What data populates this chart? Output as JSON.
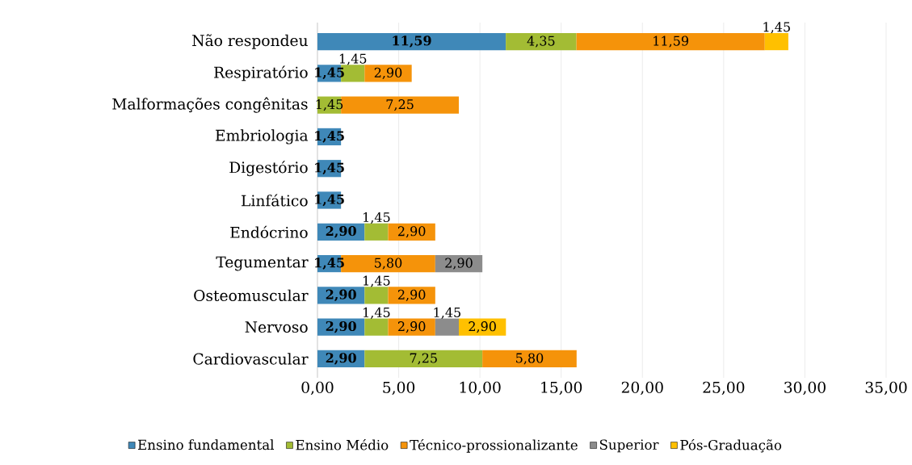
{
  "chart_data": {
    "type": "bar",
    "orientation": "horizontal",
    "stacked": true,
    "categories": [
      "Não respondeu",
      "Respiratório",
      "Malformações congênitas",
      "Embriologia",
      "Digestório",
      "Linfático",
      "Endócrino",
      "Tegumentar",
      "Osteomuscular",
      "Nervoso",
      "Cardiovascular"
    ],
    "series": [
      {
        "name": "Ensino fundamental",
        "color": "#3f88b8",
        "values": [
          11.59,
          1.45,
          null,
          1.45,
          1.45,
          1.45,
          2.9,
          1.45,
          2.9,
          2.9,
          2.9
        ],
        "value_labels": [
          "11,59",
          "1,45",
          null,
          "1,45",
          "1,45",
          "1,45",
          "2,90",
          "1,45",
          "2,90",
          "2,90",
          "2,90"
        ]
      },
      {
        "name": "Ensino Médio",
        "color": "#a3bc34",
        "values": [
          4.35,
          1.45,
          1.45,
          null,
          null,
          null,
          1.45,
          null,
          1.45,
          1.45,
          7.25
        ],
        "value_labels": [
          "4,35",
          "1,45",
          "1,45",
          null,
          null,
          null,
          "1,45",
          null,
          "1,45",
          "1,45",
          "7,25"
        ]
      },
      {
        "name": "Técnico-prossionalizante",
        "color": "#f5930a",
        "values": [
          11.59,
          2.9,
          7.25,
          null,
          null,
          null,
          2.9,
          5.8,
          2.9,
          2.9,
          5.8
        ],
        "value_labels": [
          "11,59",
          "2,90",
          "7,25",
          null,
          null,
          null,
          "2,90",
          "5,80",
          "2,90",
          "2,90",
          "5,80"
        ]
      },
      {
        "name": "Superior",
        "color": "#8c8c8c",
        "values": [
          null,
          null,
          null,
          null,
          null,
          null,
          null,
          2.9,
          null,
          1.45,
          null
        ],
        "value_labels": [
          null,
          null,
          null,
          null,
          null,
          null,
          null,
          "2,90",
          null,
          "1,45",
          null
        ]
      },
      {
        "name": "Pós-Graduação",
        "color": "#ffc000",
        "values": [
          1.45,
          null,
          null,
          null,
          null,
          null,
          null,
          null,
          null,
          2.9,
          null
        ],
        "value_labels": [
          "1,45",
          null,
          null,
          null,
          null,
          null,
          null,
          null,
          null,
          "2,90",
          null
        ]
      }
    ],
    "xlim": [
      0,
      35
    ],
    "xticks": [
      {
        "value": 0,
        "label": "0,00"
      },
      {
        "value": 5,
        "label": "5,00"
      },
      {
        "value": 10,
        "label": "10,00"
      },
      {
        "value": 15,
        "label": "15,00"
      },
      {
        "value": 20,
        "label": "20,00"
      },
      {
        "value": 25,
        "label": "25,00"
      },
      {
        "value": 30,
        "label": "30,00"
      },
      {
        "value": 35,
        "label": "35,00"
      }
    ],
    "grid": "x",
    "legend": "bottom"
  }
}
